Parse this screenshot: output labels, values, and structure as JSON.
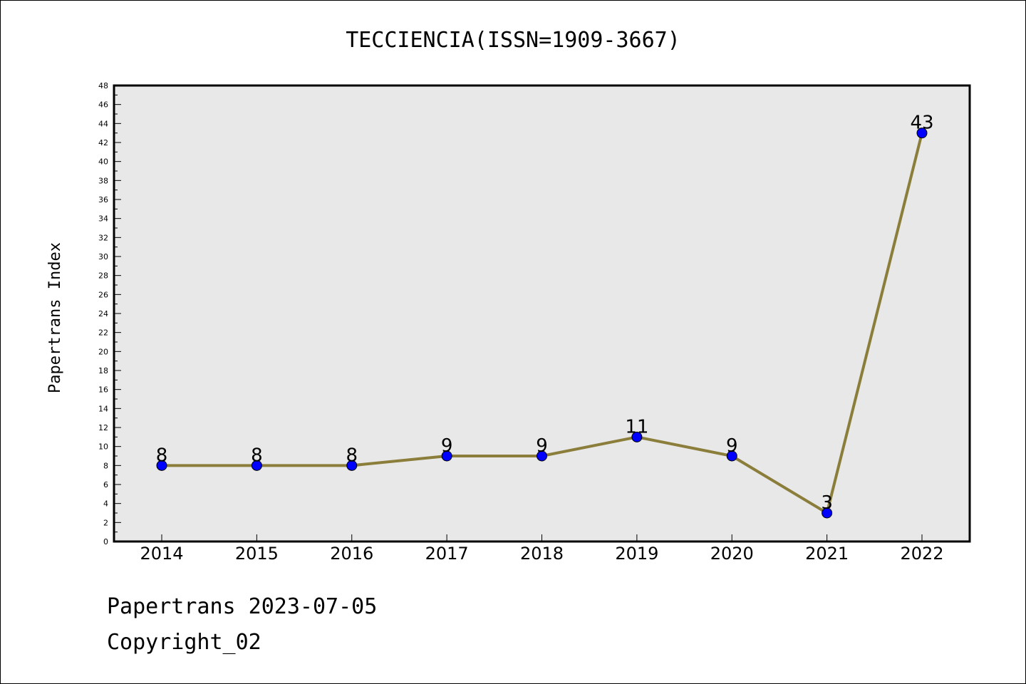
{
  "footer": {
    "date_line": "Papertrans 2023-07-05",
    "copyright": "Copyright_02"
  },
  "chart_data": {
    "type": "line",
    "title": "TECCIENCIA(ISSN=1909-3667)",
    "xlabel": "",
    "ylabel": "Papertrans Index",
    "x": [
      "2014",
      "2015",
      "2016",
      "2017",
      "2018",
      "2019",
      "2020",
      "2021",
      "2022"
    ],
    "series": [
      {
        "values": [
          8,
          8,
          8,
          9,
          9,
          11,
          9,
          3,
          43
        ]
      }
    ],
    "ylim": [
      0,
      48
    ],
    "ytick_step": 2,
    "grid": false,
    "data_labels": true,
    "colors": {
      "line": "#8b7d3a",
      "marker": "#0000ff",
      "plot_bg": "#e8e8e8"
    }
  }
}
